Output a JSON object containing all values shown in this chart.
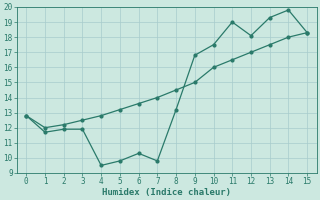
{
  "xlabel": "Humidex (Indice chaleur)",
  "x": [
    0,
    1,
    2,
    3,
    4,
    5,
    6,
    7,
    8,
    9,
    10,
    11,
    12,
    13,
    14,
    15
  ],
  "line1": [
    12.8,
    11.7,
    11.9,
    11.9,
    9.5,
    9.8,
    10.3,
    9.8,
    13.2,
    16.8,
    17.5,
    19.0,
    18.1,
    19.3,
    19.8,
    18.3
  ],
  "line2": [
    12.8,
    12.0,
    12.2,
    12.5,
    12.8,
    13.2,
    13.6,
    14.0,
    14.5,
    15.0,
    16.0,
    16.5,
    17.0,
    17.5,
    18.0,
    18.3
  ],
  "line_color": "#2a7a6a",
  "bg_color": "#cce8e0",
  "grid_color": "#a8cccc",
  "ylim": [
    9,
    20
  ],
  "xlim": [
    -0.5,
    15.5
  ],
  "yticks": [
    9,
    10,
    11,
    12,
    13,
    14,
    15,
    16,
    17,
    18,
    19,
    20
  ],
  "xticks": [
    0,
    1,
    2,
    3,
    4,
    5,
    6,
    7,
    8,
    9,
    10,
    11,
    12,
    13,
    14,
    15
  ],
  "tick_fontsize": 5.5,
  "xlabel_fontsize": 6.5,
  "marker_size": 2.0,
  "line_width": 0.9
}
